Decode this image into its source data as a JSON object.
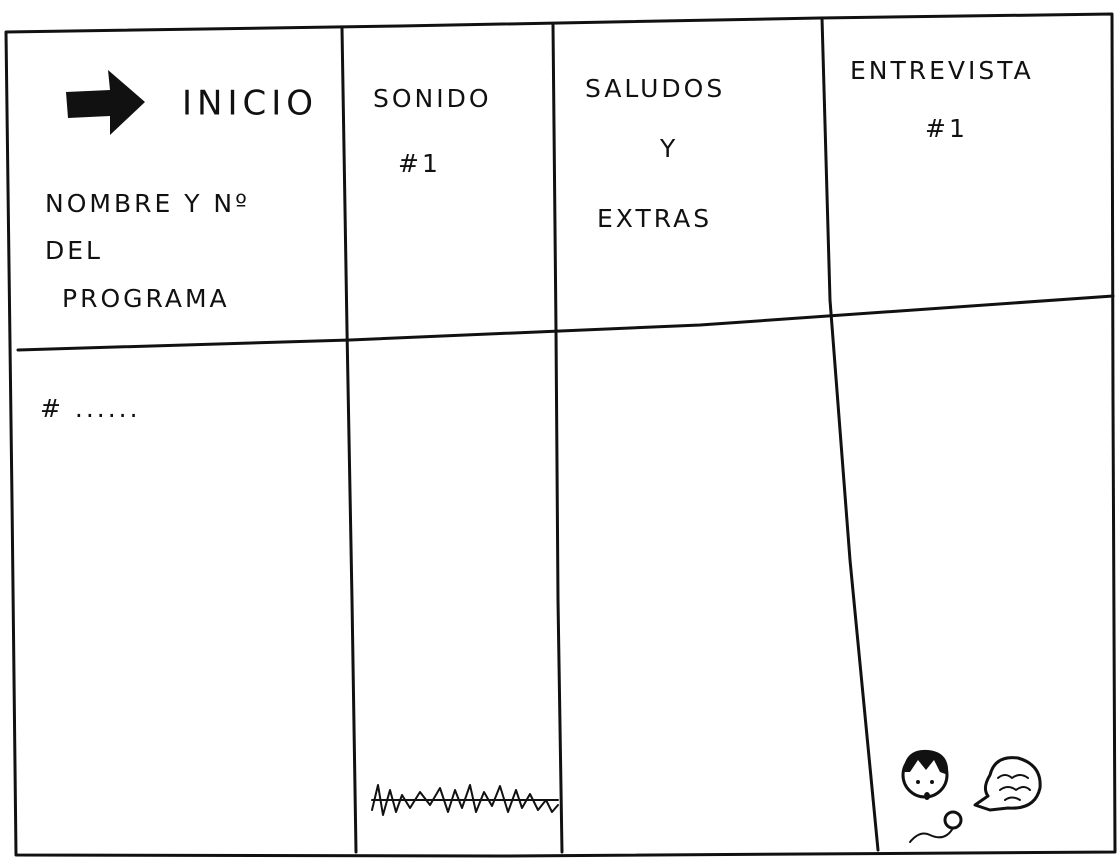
{
  "header": {
    "columns": [
      {
        "title": "INICIO",
        "lines": [
          "NOMBRE Y Nº",
          "DEL",
          "PROGRAMA"
        ]
      },
      {
        "title": "SONIDO",
        "lines": [
          "#1"
        ]
      },
      {
        "title": "SALUDOS",
        "lines": [
          "Y",
          "EXTRAS"
        ]
      },
      {
        "title": "ENTREVISTA",
        "lines": [
          "#1"
        ]
      }
    ]
  },
  "body": {
    "cells": [
      "# ......"
    ]
  }
}
